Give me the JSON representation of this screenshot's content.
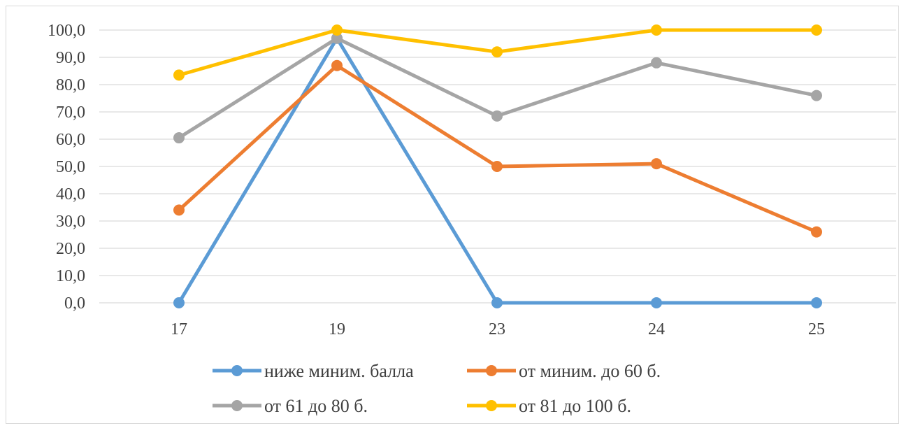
{
  "chart_data": {
    "type": "line",
    "categories": [
      "17",
      "19",
      "23",
      "24",
      "25"
    ],
    "y_tick_labels": [
      "0,0",
      "10,0",
      "20,0",
      "30,0",
      "40,0",
      "50,0",
      "60,0",
      "70,0",
      "80,0",
      "90,0",
      "100,0"
    ],
    "ylim": [
      0,
      100
    ],
    "grid": "horizontal",
    "legend_position": "bottom",
    "series": [
      {
        "name": "ниже миним. балла",
        "color": "#5b9bd5",
        "values": [
          0,
          97,
          0,
          0,
          0
        ]
      },
      {
        "name": "от миним. до 60 б.",
        "color": "#ed7d31",
        "values": [
          34,
          87,
          50,
          51,
          26
        ]
      },
      {
        "name": "от 61 до 80 б.",
        "color": "#a5a5a5",
        "values": [
          60.5,
          97,
          68.5,
          88,
          76
        ]
      },
      {
        "name": "от 81 до 100 б.",
        "color": "#ffc000",
        "values": [
          83.5,
          100,
          92,
          100,
          100
        ]
      }
    ]
  }
}
